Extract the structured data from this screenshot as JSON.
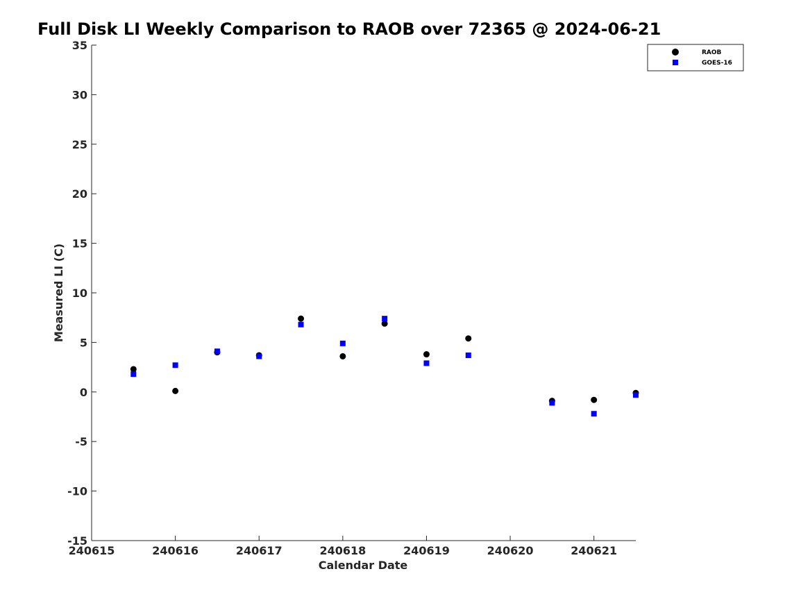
{
  "chart_data": {
    "type": "scatter",
    "title": "Full Disk LI Weekly Comparison to RAOB over 72365 @ 2024-06-21",
    "xlabel": "Calendar Date",
    "ylabel": "Measured LI (C)",
    "xlim": [
      240615,
      240621.5
    ],
    "ylim": [
      -15,
      35
    ],
    "xticks": [
      240615,
      240616,
      240617,
      240618,
      240619,
      240620,
      240621
    ],
    "xtick_labels": [
      "240615",
      "240616",
      "240617",
      "240618",
      "240619",
      "240620",
      "240621"
    ],
    "yticks": [
      -15,
      -10,
      -5,
      0,
      5,
      10,
      15,
      20,
      25,
      30,
      35
    ],
    "ytick_labels": [
      "-15",
      "-10",
      "-5",
      "0",
      "5",
      "10",
      "15",
      "20",
      "25",
      "30",
      "35"
    ],
    "grid": false,
    "legend_position": "top-right",
    "series": [
      {
        "name": "RAOB",
        "marker": "circle",
        "color": "#000000",
        "x": [
          240615.5,
          240616,
          240616.5,
          240617,
          240617.5,
          240618,
          240618.5,
          240619,
          240619.5,
          240620.5,
          240621,
          240621.5
        ],
        "y": [
          2.3,
          0.1,
          4.0,
          3.7,
          7.4,
          3.6,
          6.9,
          3.8,
          5.4,
          -0.9,
          -0.8,
          -0.1
        ]
      },
      {
        "name": "GOES-16",
        "marker": "square",
        "color": "#0000ff",
        "x": [
          240615.5,
          240616,
          240616.5,
          240617,
          240617.5,
          240618,
          240618.5,
          240619,
          240619.5,
          240620.5,
          240621,
          240621.5
        ],
        "y": [
          1.8,
          2.7,
          4.1,
          3.6,
          6.8,
          4.9,
          7.4,
          2.9,
          3.7,
          -1.1,
          -2.2,
          -0.3
        ]
      }
    ]
  }
}
